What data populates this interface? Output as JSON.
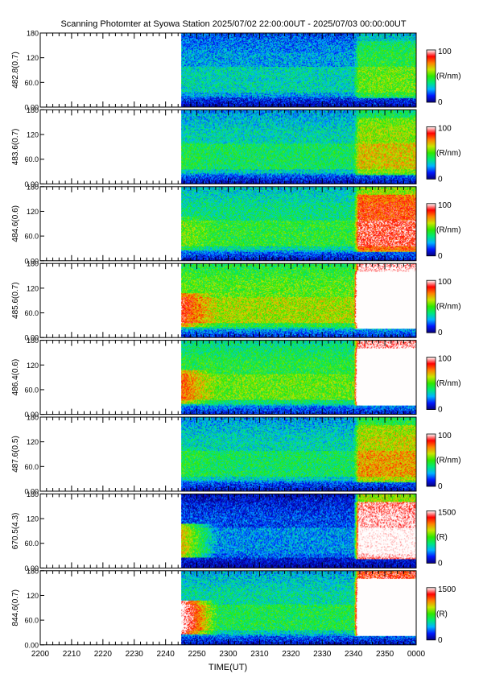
{
  "title": "Scanning Photomter at Syowa Station  2025/07/02 22:00:00UT - 2025/07/03 00:00:00UT",
  "chart_data": {
    "type": "heatmap",
    "title": "Scanning Photomter at Syowa Station  2025/07/02 22:00:00UT - 2025/07/03 00:00:00UT",
    "xlabel": "TIME(UT)",
    "x_tick_labels": [
      "2200",
      "2210",
      "2220",
      "2230",
      "2240",
      "2250",
      "2300",
      "2310",
      "2320",
      "2330",
      "2340",
      "2350",
      "0000"
    ],
    "xlim": [
      0,
      120
    ],
    "x_tick_positions_min": [
      0,
      10,
      20,
      30,
      40,
      50,
      60,
      70,
      80,
      90,
      100,
      110,
      120
    ],
    "data_start_min": 45,
    "ylim": [
      0,
      180
    ],
    "y_tick_values": [
      0,
      60,
      120,
      180
    ],
    "y_tick_labels": [
      "0.00",
      "60.0",
      "120",
      "180"
    ],
    "colormap": [
      "#06007a",
      "#0018ff",
      "#00b4ff",
      "#00e87a",
      "#2ee800",
      "#c8e600",
      "#ff8000",
      "#ff0000",
      "#ffffff"
    ],
    "panels": [
      {
        "ylabel": "482.8(0.7)",
        "cbar_max": "100",
        "cbar_min": "0",
        "cbar_unit": "(R/nm)",
        "intensity": 0.25,
        "aurora1": 0.0,
        "aurora2": 0.2
      },
      {
        "ylabel": "483.6(0.7)",
        "cbar_max": "100",
        "cbar_min": "0",
        "cbar_unit": "(R/nm)",
        "intensity": 0.33,
        "aurora1": 0.03,
        "aurora2": 0.25
      },
      {
        "ylabel": "484.6(0.6)",
        "cbar_max": "100",
        "cbar_min": "0",
        "cbar_unit": "(R/nm)",
        "intensity": 0.38,
        "aurora1": 0.1,
        "aurora2": 0.45
      },
      {
        "ylabel": "485.6(0.7)",
        "cbar_max": "100",
        "cbar_min": "0",
        "cbar_unit": "(R/nm)",
        "intensity": 0.52,
        "aurora1": 0.3,
        "aurora2": 0.95
      },
      {
        "ylabel": "486.4(0.6)",
        "cbar_max": "100",
        "cbar_min": "0",
        "cbar_unit": "(R/nm)",
        "intensity": 0.45,
        "aurora1": 0.3,
        "aurora2": 1.0
      },
      {
        "ylabel": "487.6(0.5)",
        "cbar_max": "100",
        "cbar_min": "0",
        "cbar_unit": "(R/nm)",
        "intensity": 0.33,
        "aurora1": 0.05,
        "aurora2": 0.3
      },
      {
        "ylabel": "670.5(4.3)",
        "cbar_max": "1500",
        "cbar_min": "0",
        "cbar_unit": "(R)",
        "intensity": 0.15,
        "aurora1": 0.5,
        "aurora2": 0.85
      },
      {
        "ylabel": "844.6(0.7)",
        "cbar_max": "1500",
        "cbar_min": "0",
        "cbar_unit": "(R)",
        "intensity": 0.35,
        "aurora1": 0.7,
        "aurora2": 1.0
      }
    ]
  }
}
